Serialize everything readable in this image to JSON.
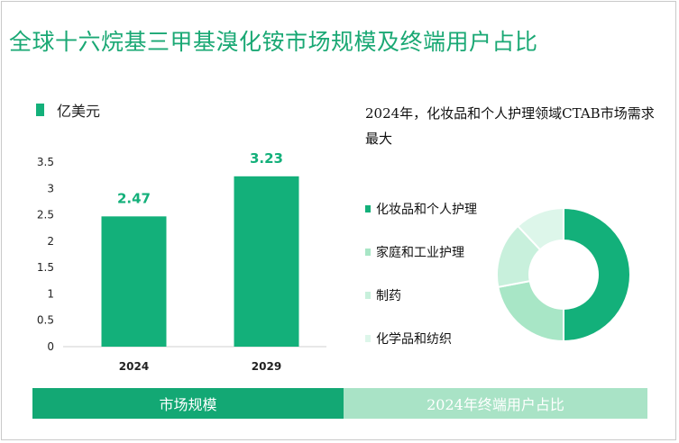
{
  "title": "全球十六烷基三甲基溴化铵市场规模及终端用户占比",
  "colors": {
    "bar": "#13b07a",
    "title": "#1aa874",
    "bottom_left": "#13a874",
    "bottom_right": "#a9e3c6",
    "pie": [
      "#13b07a",
      "#a8e6c6",
      "#c8f0dc",
      "#ddf6ea"
    ]
  },
  "note": "2024年，化妆品和个人护理领域CTAB市场需求最大",
  "bottom": {
    "left_label": "市场规模",
    "right_label": "2024年终端用户占比"
  },
  "chart_data": [
    {
      "type": "bar",
      "legend": "亿美元",
      "categories": [
        "2024",
        "2029"
      ],
      "values": [
        2.47,
        3.23
      ],
      "value_labels": [
        "2.47",
        "3.23"
      ],
      "ylim": [
        0,
        3.5
      ],
      "yticks": [
        "0",
        "0.5",
        "1",
        "1.5",
        "2",
        "2.5",
        "3",
        "3.5"
      ],
      "grid": false
    },
    {
      "type": "pie",
      "donut": true,
      "categories": [
        "化妆品和个人护理",
        "家庭和工业护理",
        "制药",
        "化学品和纺织"
      ],
      "values": [
        50,
        22,
        16,
        12
      ],
      "legend_placement": "left"
    }
  ]
}
